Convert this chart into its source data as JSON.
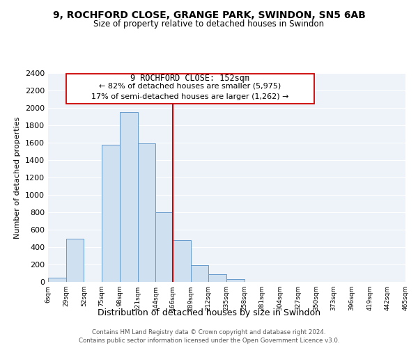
{
  "title1": "9, ROCHFORD CLOSE, GRANGE PARK, SWINDON, SN5 6AB",
  "title2": "Size of property relative to detached houses in Swindon",
  "xlabel": "Distribution of detached houses by size in Swindon",
  "ylabel": "Number of detached properties",
  "bin_labels": [
    "6sqm",
    "29sqm",
    "52sqm",
    "75sqm",
    "98sqm",
    "121sqm",
    "144sqm",
    "166sqm",
    "189sqm",
    "212sqm",
    "235sqm",
    "258sqm",
    "281sqm",
    "304sqm",
    "327sqm",
    "350sqm",
    "373sqm",
    "396sqm",
    "419sqm",
    "442sqm",
    "465sqm"
  ],
  "bin_edges": [
    6,
    29,
    52,
    75,
    98,
    121,
    144,
    166,
    189,
    212,
    235,
    258,
    281,
    304,
    327,
    350,
    373,
    396,
    419,
    442,
    465
  ],
  "bar_heights": [
    50,
    500,
    0,
    1575,
    1950,
    1590,
    800,
    480,
    190,
    90,
    30,
    0,
    0,
    0,
    0,
    0,
    0,
    0,
    0,
    0
  ],
  "bar_color": "#cfe0f0",
  "bar_edge_color": "#6699cc",
  "ylim": [
    0,
    2400
  ],
  "yticks": [
    0,
    200,
    400,
    600,
    800,
    1000,
    1200,
    1400,
    1600,
    1800,
    2000,
    2200,
    2400
  ],
  "annotation_title": "9 ROCHFORD CLOSE: 152sqm",
  "annotation_line1": "← 82% of detached houses are smaller (5,975)",
  "annotation_line2": "17% of semi-detached houses are larger (1,262) →",
  "footer1": "Contains HM Land Registry data © Crown copyright and database right 2024.",
  "footer2": "Contains public sector information licensed under the Open Government Licence v3.0.",
  "vline_color": "#cc0000",
  "vline_x": 166,
  "bg_color": "#ffffff",
  "plot_bg_color": "#eef3fa",
  "grid_color": "#ffffff"
}
